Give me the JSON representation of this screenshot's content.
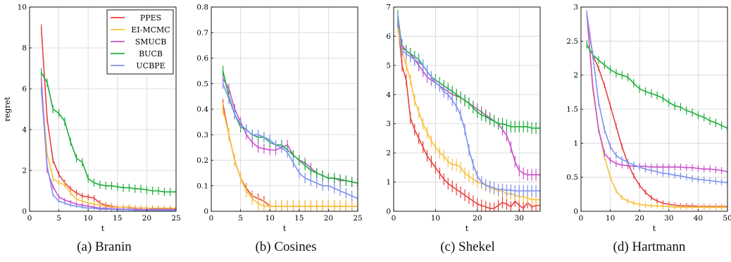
{
  "colors": {
    "PPES": "#e8413f",
    "EI-MCMC": "#f8c13c",
    "SMUCB": "#c950c9",
    "BUCB": "#1fad3c",
    "UCBPE": "#7f92ef"
  },
  "chart_data": [
    {
      "type": "line",
      "caption": "(a) Branin",
      "xlabel": "t",
      "ylabel": "regret",
      "xlim": [
        0,
        25
      ],
      "ylim": [
        0,
        10
      ],
      "xticks": [
        0,
        5,
        10,
        15,
        20,
        25
      ],
      "yticks": [
        0,
        2,
        4,
        6,
        8,
        10
      ],
      "grid": true,
      "legend": "top-right",
      "legend_entries": [
        "PPES",
        "EI-MCMC",
        "SMUCB",
        "BUCB",
        "UCBPE"
      ],
      "x": [
        2,
        3,
        4,
        5,
        6,
        7,
        8,
        9,
        10,
        11,
        12,
        13,
        14,
        15,
        16,
        17,
        18,
        19,
        20,
        21,
        22,
        23,
        24,
        25
      ],
      "series": [
        {
          "name": "PPES",
          "values": [
            9.0,
            4.5,
            2.5,
            1.8,
            1.4,
            1.1,
            0.9,
            0.75,
            0.7,
            0.65,
            0.4,
            0.3,
            0.25,
            0.2,
            0.2,
            0.2,
            0.15,
            0.15,
            0.15,
            0.12,
            0.12,
            0.1,
            0.1,
            0.1
          ],
          "error": 0.15
        },
        {
          "name": "EI-MCMC",
          "values": [
            6.0,
            2.8,
            1.6,
            1.4,
            1.3,
            0.9,
            0.6,
            0.5,
            0.4,
            0.35,
            0.3,
            0.25,
            0.2,
            0.2,
            0.2,
            0.18,
            0.15,
            0.15,
            0.15,
            0.15,
            0.15,
            0.15,
            0.15,
            0.15
          ],
          "error": 0.15
        },
        {
          "name": "SMUCB",
          "values": [
            6.5,
            2.0,
            1.2,
            0.7,
            0.55,
            0.45,
            0.35,
            0.3,
            0.25,
            0.2,
            0.15,
            0.15,
            0.12,
            0.12,
            0.1,
            0.1,
            0.1,
            0.08,
            0.08,
            0.08,
            0.08,
            0.08,
            0.08,
            0.08
          ],
          "error": 0.1
        },
        {
          "name": "BUCB",
          "values": [
            6.8,
            6.3,
            5.0,
            4.8,
            4.4,
            3.4,
            2.6,
            2.4,
            1.6,
            1.4,
            1.3,
            1.25,
            1.25,
            1.2,
            1.15,
            1.15,
            1.1,
            1.1,
            1.05,
            1.0,
            1.0,
            0.95,
            0.95,
            0.95
          ],
          "error": 0.2
        },
        {
          "name": "UCBPE",
          "values": [
            6.0,
            2.2,
            0.8,
            0.5,
            0.4,
            0.3,
            0.25,
            0.2,
            0.15,
            0.15,
            0.1,
            0.1,
            0.1,
            0.08,
            0.08,
            0.08,
            0.05,
            0.05,
            0.05,
            0.05,
            0.05,
            0.05,
            0.05,
            0.05
          ],
          "error": 0.08
        }
      ]
    },
    {
      "type": "line",
      "caption": "(b) Cosines",
      "xlabel": "t",
      "ylabel": "",
      "xlim": [
        0,
        25
      ],
      "ylim": [
        0,
        0.8
      ],
      "xticks": [
        0,
        5,
        10,
        15,
        20,
        25
      ],
      "yticks": [
        0,
        0.1,
        0.2,
        0.3,
        0.4,
        0.5,
        0.6,
        0.7,
        0.8
      ],
      "grid": true,
      "legend": "none",
      "x": [
        2,
        3,
        4,
        5,
        6,
        7,
        8,
        9,
        10,
        11,
        12,
        13,
        14,
        15,
        16,
        17,
        18,
        19,
        20,
        21,
        22,
        23,
        24,
        25
      ],
      "series": [
        {
          "name": "PPES",
          "values": [
            0.42,
            0.3,
            0.2,
            0.13,
            0.09,
            0.06,
            0.05,
            0.04,
            0.02,
            0.02,
            0.02,
            0.02,
            0.02,
            0.02,
            0.02,
            0.02,
            0.02,
            0.02,
            0.02,
            0.02,
            0.02,
            0.02,
            0.02,
            0.02
          ],
          "error": 0.02
        },
        {
          "name": "EI-MCMC",
          "values": [
            0.4,
            0.3,
            0.2,
            0.13,
            0.08,
            0.05,
            0.03,
            0.02,
            0.02,
            0.02,
            0.02,
            0.02,
            0.02,
            0.02,
            0.02,
            0.02,
            0.02,
            0.02,
            0.02,
            0.02,
            0.02,
            0.02,
            0.02,
            0.02
          ],
          "error": 0.025
        },
        {
          "name": "SMUCB",
          "values": [
            0.52,
            0.48,
            0.4,
            0.35,
            0.3,
            0.27,
            0.25,
            0.245,
            0.24,
            0.24,
            0.25,
            0.26,
            0.22,
            0.2,
            0.19,
            0.17,
            0.15,
            0.14,
            0.13,
            0.13,
            0.12,
            0.12,
            0.115,
            0.11
          ],
          "error": 0.02
        },
        {
          "name": "BUCB",
          "values": [
            0.55,
            0.45,
            0.38,
            0.33,
            0.32,
            0.3,
            0.29,
            0.29,
            0.27,
            0.26,
            0.26,
            0.24,
            0.22,
            0.2,
            0.18,
            0.16,
            0.15,
            0.14,
            0.13,
            0.13,
            0.125,
            0.12,
            0.115,
            0.11
          ],
          "error": 0.02
        },
        {
          "name": "UCBPE",
          "values": [
            0.5,
            0.44,
            0.38,
            0.34,
            0.32,
            0.3,
            0.3,
            0.29,
            0.28,
            0.26,
            0.25,
            0.23,
            0.19,
            0.15,
            0.13,
            0.12,
            0.11,
            0.1,
            0.1,
            0.09,
            0.08,
            0.07,
            0.06,
            0.05
          ],
          "error": 0.02
        }
      ]
    },
    {
      "type": "line",
      "caption": "(c) Shekel",
      "xlabel": "t",
      "ylabel": "",
      "xlim": [
        0,
        35
      ],
      "ylim": [
        0,
        7
      ],
      "xticks": [
        0,
        10,
        20,
        30
      ],
      "yticks": [
        0,
        1,
        2,
        3,
        4,
        5,
        6,
        7
      ],
      "grid": true,
      "legend": "none",
      "x": [
        1,
        2,
        3,
        4,
        5,
        6,
        7,
        8,
        9,
        10,
        11,
        12,
        13,
        14,
        15,
        16,
        17,
        18,
        19,
        20,
        21,
        22,
        23,
        24,
        25,
        26,
        27,
        28,
        29,
        30,
        31,
        32,
        33,
        34,
        35
      ],
      "series": [
        {
          "name": "PPES",
          "values": [
            6.5,
            5.0,
            4.5,
            3.2,
            2.8,
            2.5,
            2.2,
            1.9,
            1.7,
            1.5,
            1.3,
            1.1,
            0.95,
            0.85,
            0.75,
            0.65,
            0.55,
            0.45,
            0.35,
            0.25,
            0.2,
            0.15,
            0.1,
            0.1,
            0.2,
            0.3,
            0.25,
            0.15,
            0.35,
            0.2,
            0.1,
            0.3,
            0.15,
            0.2,
            0.2
          ],
          "error": 0.2
        },
        {
          "name": "EI-MCMC",
          "values": [
            6.3,
            5.5,
            5.0,
            4.5,
            3.8,
            3.4,
            3.0,
            2.7,
            2.4,
            2.2,
            2.0,
            1.9,
            1.7,
            1.6,
            1.6,
            1.5,
            1.3,
            1.2,
            1.1,
            1.0,
            0.95,
            0.9,
            0.8,
            0.75,
            0.7,
            0.7,
            0.6,
            0.6,
            0.55,
            0.5,
            0.5,
            0.45,
            0.4,
            0.4,
            0.4
          ],
          "error": 0.2
        },
        {
          "name": "SMUCB",
          "values": [
            6.5,
            5.7,
            5.5,
            5.4,
            5.2,
            5.0,
            4.8,
            4.6,
            4.5,
            4.4,
            4.3,
            4.2,
            4.1,
            4.0,
            3.95,
            3.9,
            3.8,
            3.7,
            3.6,
            3.5,
            3.4,
            3.3,
            3.2,
            3.1,
            3.0,
            2.8,
            2.6,
            2.2,
            1.7,
            1.4,
            1.3,
            1.25,
            1.25,
            1.25,
            1.25
          ],
          "error": 0.2
        },
        {
          "name": "BUCB",
          "values": [
            6.7,
            5.6,
            5.5,
            5.4,
            5.3,
            5.2,
            5.0,
            4.8,
            4.6,
            4.5,
            4.4,
            4.3,
            4.2,
            4.1,
            4.0,
            3.9,
            3.8,
            3.7,
            3.55,
            3.4,
            3.3,
            3.25,
            3.15,
            3.1,
            3.0,
            3.0,
            2.95,
            2.9,
            2.9,
            2.9,
            2.9,
            2.9,
            2.85,
            2.85,
            2.85
          ],
          "error": 0.2
        },
        {
          "name": "UCBPE",
          "values": [
            6.6,
            5.5,
            5.4,
            5.3,
            5.2,
            5.1,
            5.0,
            4.8,
            4.6,
            4.4,
            4.3,
            4.1,
            4.0,
            3.8,
            3.6,
            3.3,
            2.8,
            2.1,
            1.6,
            1.2,
            1.0,
            0.9,
            0.85,
            0.8,
            0.75,
            0.75,
            0.72,
            0.72,
            0.7,
            0.7,
            0.7,
            0.7,
            0.7,
            0.7,
            0.7
          ],
          "error": 0.2
        }
      ]
    },
    {
      "type": "line",
      "caption": "(d) Hartmann",
      "xlabel": "t",
      "ylabel": "",
      "xlim": [
        0,
        50
      ],
      "ylim": [
        0,
        3
      ],
      "xticks": [
        0,
        10,
        20,
        30,
        40,
        50
      ],
      "yticks": [
        0,
        0.5,
        1,
        1.5,
        2,
        2.5,
        3
      ],
      "grid": true,
      "legend": "none",
      "x": [
        2,
        4,
        6,
        8,
        10,
        12,
        14,
        16,
        18,
        20,
        22,
        24,
        26,
        28,
        30,
        32,
        34,
        36,
        38,
        40,
        42,
        44,
        46,
        48,
        50
      ],
      "series": [
        {
          "name": "PPES",
          "values": [
            2.9,
            2.3,
            2.1,
            1.85,
            1.55,
            1.25,
            0.95,
            0.7,
            0.52,
            0.38,
            0.28,
            0.2,
            0.15,
            0.12,
            0.1,
            0.09,
            0.08,
            0.08,
            0.08,
            0.07,
            0.07,
            0.07,
            0.07,
            0.07,
            0.07
          ],
          "error": 0.04
        },
        {
          "name": "EI-MCMC",
          "values": [
            2.9,
            1.8,
            1.2,
            0.8,
            0.5,
            0.3,
            0.2,
            0.15,
            0.12,
            0.1,
            0.09,
            0.08,
            0.08,
            0.07,
            0.07,
            0.06,
            0.06,
            0.06,
            0.06,
            0.06,
            0.06,
            0.06,
            0.06,
            0.06,
            0.06
          ],
          "error": 0.04
        },
        {
          "name": "SMUCB",
          "values": [
            2.9,
            1.85,
            1.2,
            0.85,
            0.75,
            0.7,
            0.68,
            0.67,
            0.66,
            0.66,
            0.66,
            0.65,
            0.65,
            0.65,
            0.65,
            0.65,
            0.65,
            0.64,
            0.64,
            0.63,
            0.62,
            0.62,
            0.61,
            0.6,
            0.58
          ],
          "error": 0.05
        },
        {
          "name": "BUCB",
          "values": [
            2.45,
            2.3,
            2.22,
            2.15,
            2.08,
            2.03,
            2.0,
            1.97,
            1.88,
            1.8,
            1.76,
            1.73,
            1.7,
            1.66,
            1.6,
            1.55,
            1.53,
            1.48,
            1.45,
            1.41,
            1.38,
            1.33,
            1.3,
            1.26,
            1.22
          ],
          "error": 0.06
        },
        {
          "name": "UCBPE",
          "values": [
            2.9,
            2.3,
            1.6,
            1.2,
            0.95,
            0.82,
            0.76,
            0.72,
            0.68,
            0.65,
            0.62,
            0.6,
            0.58,
            0.56,
            0.55,
            0.53,
            0.52,
            0.5,
            0.48,
            0.47,
            0.46,
            0.45,
            0.44,
            0.43,
            0.42
          ],
          "error": 0.05
        }
      ]
    }
  ]
}
